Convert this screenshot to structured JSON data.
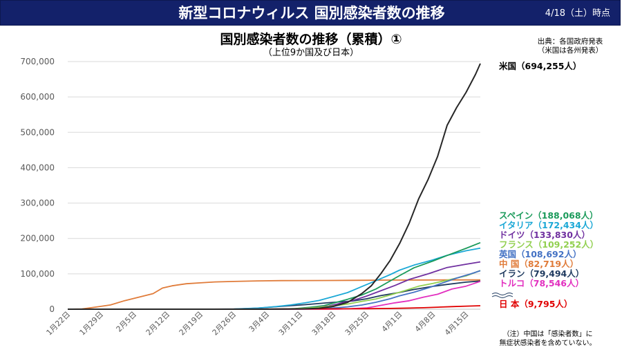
{
  "header": {
    "title": "新型コロナウィルス 国別感染者数の推移",
    "date": "4/18（土）時点"
  },
  "chart_data": {
    "type": "line",
    "title": "国別感染者数の推移（累積）①",
    "subtitle": "（上位9か国及び日本）",
    "source": [
      "出典：各国政府発表",
      "（米国は各州発表）"
    ],
    "note": [
      "（注）中国は「感染者数」に",
      "無症状感染者を含めていない。"
    ],
    "x_start_day": 0,
    "x_end_day": 87,
    "x_ticks": [
      {
        "day": 0,
        "label": "1月22日"
      },
      {
        "day": 7,
        "label": "1月29日"
      },
      {
        "day": 14,
        "label": "2月5日"
      },
      {
        "day": 21,
        "label": "2月12日"
      },
      {
        "day": 28,
        "label": "2月19日"
      },
      {
        "day": 35,
        "label": "2月26日"
      },
      {
        "day": 42,
        "label": "3月4日"
      },
      {
        "day": 49,
        "label": "3月11日"
      },
      {
        "day": 56,
        "label": "3月18日"
      },
      {
        "day": 63,
        "label": "3月25日"
      },
      {
        "day": 70,
        "label": "4月1日"
      },
      {
        "day": 77,
        "label": "4月8日"
      },
      {
        "day": 84,
        "label": "4月15日"
      }
    ],
    "ylim": [
      0,
      700000
    ],
    "y_ticks": [
      {
        "value": 0,
        "label": "0"
      },
      {
        "value": 100000,
        "label": "100,000"
      },
      {
        "value": 200000,
        "label": "200,000"
      },
      {
        "value": 300000,
        "label": "300,000"
      },
      {
        "value": 400000,
        "label": "400,000"
      },
      {
        "value": 500000,
        "label": "500,000"
      },
      {
        "value": 600000,
        "label": "600,000"
      },
      {
        "value": 700000,
        "label": "700,000"
      }
    ],
    "series": [
      {
        "name": "中国",
        "label": "中 国（82,719人）",
        "color": "#e07b39",
        "points": [
          [
            0,
            0
          ],
          [
            3,
            800
          ],
          [
            6,
            6000
          ],
          [
            9,
            12000
          ],
          [
            12,
            24000
          ],
          [
            15,
            34000
          ],
          [
            18,
            44000
          ],
          [
            20,
            59800
          ],
          [
            22,
            66000
          ],
          [
            25,
            72000
          ],
          [
            28,
            74500
          ],
          [
            31,
            77000
          ],
          [
            35,
            78500
          ],
          [
            40,
            80000
          ],
          [
            45,
            80800
          ],
          [
            50,
            81000
          ],
          [
            55,
            81200
          ],
          [
            60,
            81500
          ],
          [
            63,
            81700
          ],
          [
            68,
            82300
          ],
          [
            75,
            82600
          ],
          [
            80,
            82700
          ],
          [
            84,
            82700
          ],
          [
            87,
            82719
          ]
        ]
      },
      {
        "name": "イラン",
        "label": "イラン（79,494人）",
        "color": "#1f3a5f",
        "points": [
          [
            0,
            0
          ],
          [
            28,
            0
          ],
          [
            35,
            200
          ],
          [
            40,
            2900
          ],
          [
            45,
            8000
          ],
          [
            50,
            12700
          ],
          [
            55,
            18400
          ],
          [
            60,
            23000
          ],
          [
            63,
            29400
          ],
          [
            66,
            38300
          ],
          [
            70,
            47600
          ],
          [
            73,
            55700
          ],
          [
            77,
            64600
          ],
          [
            80,
            70000
          ],
          [
            84,
            76400
          ],
          [
            87,
            79494
          ]
        ]
      },
      {
        "name": "イタリア",
        "label": "イタリア（172,434人）",
        "color": "#1ba8d6",
        "points": [
          [
            0,
            0
          ],
          [
            30,
            0
          ],
          [
            35,
            650
          ],
          [
            40,
            3100
          ],
          [
            44,
            7400
          ],
          [
            47,
            12000
          ],
          [
            50,
            17700
          ],
          [
            53,
            24700
          ],
          [
            56,
            35700
          ],
          [
            59,
            47000
          ],
          [
            62,
            63900
          ],
          [
            65,
            80500
          ],
          [
            68,
            97700
          ],
          [
            70,
            110500
          ],
          [
            73,
            124600
          ],
          [
            77,
            139400
          ],
          [
            80,
            152300
          ],
          [
            84,
            165200
          ],
          [
            87,
            172434
          ]
        ]
      },
      {
        "name": "スペイン",
        "label": "スペイン（188,068人）",
        "color": "#1a9a5a",
        "points": [
          [
            0,
            0
          ],
          [
            40,
            0
          ],
          [
            45,
            500
          ],
          [
            48,
            1600
          ],
          [
            51,
            5200
          ],
          [
            54,
            10000
          ],
          [
            56,
            17000
          ],
          [
            59,
            28000
          ],
          [
            62,
            40000
          ],
          [
            65,
            57000
          ],
          [
            68,
            80000
          ],
          [
            70,
            95000
          ],
          [
            73,
            117000
          ],
          [
            77,
            136000
          ],
          [
            80,
            152000
          ],
          [
            84,
            172000
          ],
          [
            87,
            188068
          ]
        ]
      },
      {
        "name": "ドイツ",
        "label": "ドイツ（133,830人）",
        "color": "#7030a0",
        "points": [
          [
            0,
            0
          ],
          [
            42,
            0
          ],
          [
            46,
            500
          ],
          [
            49,
            1500
          ],
          [
            52,
            4500
          ],
          [
            55,
            9000
          ],
          [
            57,
            15000
          ],
          [
            60,
            24000
          ],
          [
            63,
            37000
          ],
          [
            66,
            52000
          ],
          [
            69,
            67000
          ],
          [
            72,
            84000
          ],
          [
            76,
            100000
          ],
          [
            80,
            118000
          ],
          [
            84,
            127000
          ],
          [
            87,
            133830
          ]
        ]
      },
      {
        "name": "フランス",
        "label": "フランス（109,252人）",
        "color": "#92d050",
        "points": [
          [
            0,
            0
          ],
          [
            42,
            0
          ],
          [
            46,
            500
          ],
          [
            50,
            2300
          ],
          [
            53,
            5500
          ],
          [
            56,
            9100
          ],
          [
            59,
            14500
          ],
          [
            62,
            22000
          ],
          [
            65,
            29000
          ],
          [
            68,
            40000
          ],
          [
            71,
            52000
          ],
          [
            74,
            65000
          ],
          [
            77,
            73000
          ],
          [
            80,
            82000
          ],
          [
            84,
            94000
          ],
          [
            87,
            109252
          ]
        ]
      },
      {
        "name": "英国",
        "label": "英国（108,692人）",
        "color": "#4472c4",
        "points": [
          [
            0,
            0
          ],
          [
            45,
            0
          ],
          [
            49,
            500
          ],
          [
            53,
            1500
          ],
          [
            56,
            3300
          ],
          [
            59,
            6700
          ],
          [
            62,
            11700
          ],
          [
            65,
            19500
          ],
          [
            68,
            29500
          ],
          [
            70,
            38000
          ],
          [
            73,
            48000
          ],
          [
            76,
            60000
          ],
          [
            79,
            74000
          ],
          [
            82,
            88000
          ],
          [
            85,
            100000
          ],
          [
            87,
            108692
          ]
        ]
      },
      {
        "name": "トルコ",
        "label": "トルコ（78,546人）",
        "color": "#e22fbf",
        "points": [
          [
            0,
            0
          ],
          [
            50,
            0
          ],
          [
            54,
            50
          ],
          [
            57,
            200
          ],
          [
            60,
            1500
          ],
          [
            63,
            3600
          ],
          [
            66,
            10800
          ],
          [
            69,
            18000
          ],
          [
            72,
            23900
          ],
          [
            75,
            34100
          ],
          [
            78,
            42300
          ],
          [
            81,
            56900
          ],
          [
            84,
            65100
          ],
          [
            87,
            78546
          ]
        ]
      },
      {
        "name": "日本",
        "label": "日 本（9,795人）",
        "color": "#e00000",
        "points": [
          [
            0,
            0
          ],
          [
            20,
            0
          ],
          [
            30,
            100
          ],
          [
            40,
            300
          ],
          [
            50,
            600
          ],
          [
            56,
            900
          ],
          [
            63,
            1300
          ],
          [
            68,
            2200
          ],
          [
            72,
            3100
          ],
          [
            75,
            4200
          ],
          [
            78,
            5600
          ],
          [
            81,
            7300
          ],
          [
            84,
            8700
          ],
          [
            87,
            9795
          ]
        ]
      },
      {
        "name": "米国",
        "label": "米国（694,255人）",
        "color": "#262626",
        "points": [
          [
            0,
            0
          ],
          [
            40,
            0
          ],
          [
            45,
            200
          ],
          [
            50,
            1000
          ],
          [
            53,
            2700
          ],
          [
            56,
            7800
          ],
          [
            59,
            19100
          ],
          [
            62,
            44000
          ],
          [
            64,
            66000
          ],
          [
            66,
            100000
          ],
          [
            68,
            138000
          ],
          [
            70,
            186000
          ],
          [
            72,
            243000
          ],
          [
            74,
            312000
          ],
          [
            76,
            367000
          ],
          [
            78,
            432000
          ],
          [
            80,
            520000
          ],
          [
            82,
            570000
          ],
          [
            84,
            613000
          ],
          [
            86,
            664000
          ],
          [
            87,
            694255
          ]
        ]
      }
    ],
    "legend_order": [
      "米国",
      "スペイン",
      "イタリア",
      "ドイツ",
      "フランス",
      "英国",
      "中国",
      "イラン",
      "トルコ",
      "日本"
    ]
  }
}
